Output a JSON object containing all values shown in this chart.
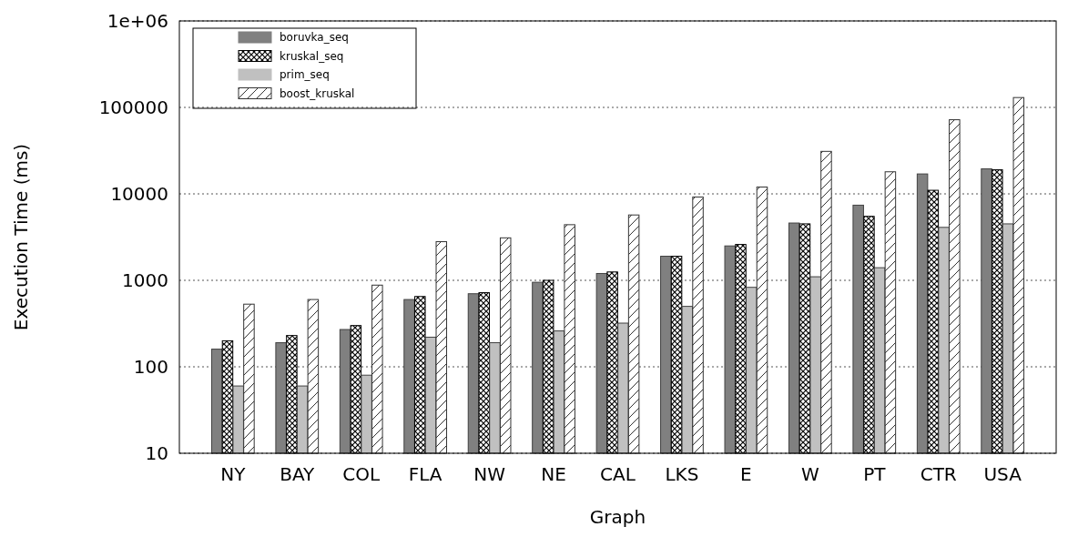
{
  "chart_data": {
    "type": "bar",
    "xlabel": "Graph",
    "ylabel": "Execution Time (ms)",
    "categories": [
      "NY",
      "BAY",
      "COL",
      "FLA",
      "NW",
      "NE",
      "CAL",
      "LKS",
      "E",
      "W",
      "PT",
      "CTR",
      "USA"
    ],
    "series": [
      {
        "name": "boruvka_seq",
        "color": "#808080",
        "values": [
          160,
          190,
          270,
          600,
          700,
          950,
          1200,
          1900,
          2500,
          4600,
          7400,
          17000,
          19500
        ]
      },
      {
        "name": "kruskal_seq",
        "color": "#000000",
        "values": [
          200,
          230,
          300,
          650,
          720,
          1000,
          1250,
          1900,
          2600,
          4500,
          5500,
          11000,
          19000
        ]
      },
      {
        "name": "prim_seq",
        "color": "#c0c0c0",
        "values": [
          60,
          60,
          80,
          220,
          190,
          260,
          320,
          500,
          830,
          1100,
          1400,
          4100,
          4500
        ]
      },
      {
        "name": "boost_kruskal",
        "color": "#333333",
        "values": [
          530,
          600,
          880,
          2800,
          3100,
          4400,
          5700,
          9200,
          12000,
          31000,
          18000,
          72000,
          130000
        ]
      }
    ],
    "log": true,
    "ylim": [
      10,
      1000000
    ],
    "yticks": [
      10,
      100,
      1000,
      10000,
      100000,
      {
        "value": 1000000,
        "label": "1e+06"
      }
    ],
    "grid": "y",
    "legend": "top left"
  }
}
